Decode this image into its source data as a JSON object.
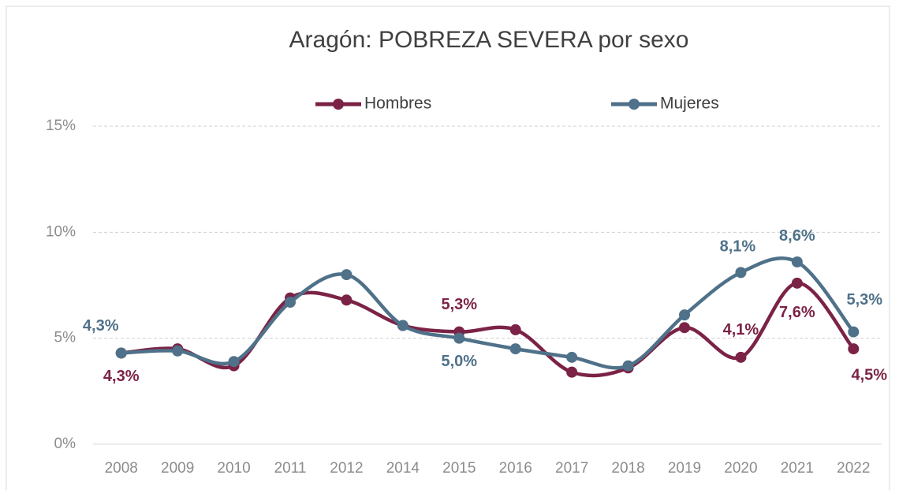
{
  "chart_data": {
    "type": "line",
    "title": "Aragón: POBREZA SEVERA por sexo",
    "categories": [
      "2008",
      "2009",
      "2010",
      "2011",
      "2012",
      "2014",
      "2015",
      "2016",
      "2017",
      "2018",
      "2019",
      "2020",
      "2021",
      "2022"
    ],
    "series": [
      {
        "name": "Hombres",
        "color": "#7b2346",
        "values": [
          4.3,
          4.5,
          3.7,
          6.9,
          6.8,
          5.6,
          5.3,
          5.4,
          3.4,
          3.6,
          5.5,
          4.1,
          7.6,
          4.5
        ],
        "value_labels": [
          "4,3%",
          null,
          null,
          null,
          null,
          null,
          "5,3%",
          null,
          null,
          null,
          null,
          "4,1%",
          "7,6%",
          "4,5%"
        ]
      },
      {
        "name": "Mujeres",
        "color": "#4f7189",
        "values": [
          4.3,
          4.4,
          3.9,
          6.7,
          8.0,
          5.6,
          5.0,
          4.5,
          4.1,
          3.7,
          6.1,
          8.1,
          8.6,
          5.3
        ],
        "value_labels": [
          "4,3%",
          null,
          null,
          null,
          null,
          null,
          "5,0%",
          null,
          null,
          null,
          null,
          "8,1%",
          "8,6%",
          "5,3%"
        ]
      }
    ],
    "ylim": [
      0,
      15
    ],
    "yticks": [
      {
        "value": 0,
        "label": "0%"
      },
      {
        "value": 5,
        "label": "5%"
      },
      {
        "value": 10,
        "label": "10%"
      },
      {
        "value": 15,
        "label": "15%"
      }
    ],
    "grid": true,
    "smooth": true,
    "legend": "top"
  }
}
